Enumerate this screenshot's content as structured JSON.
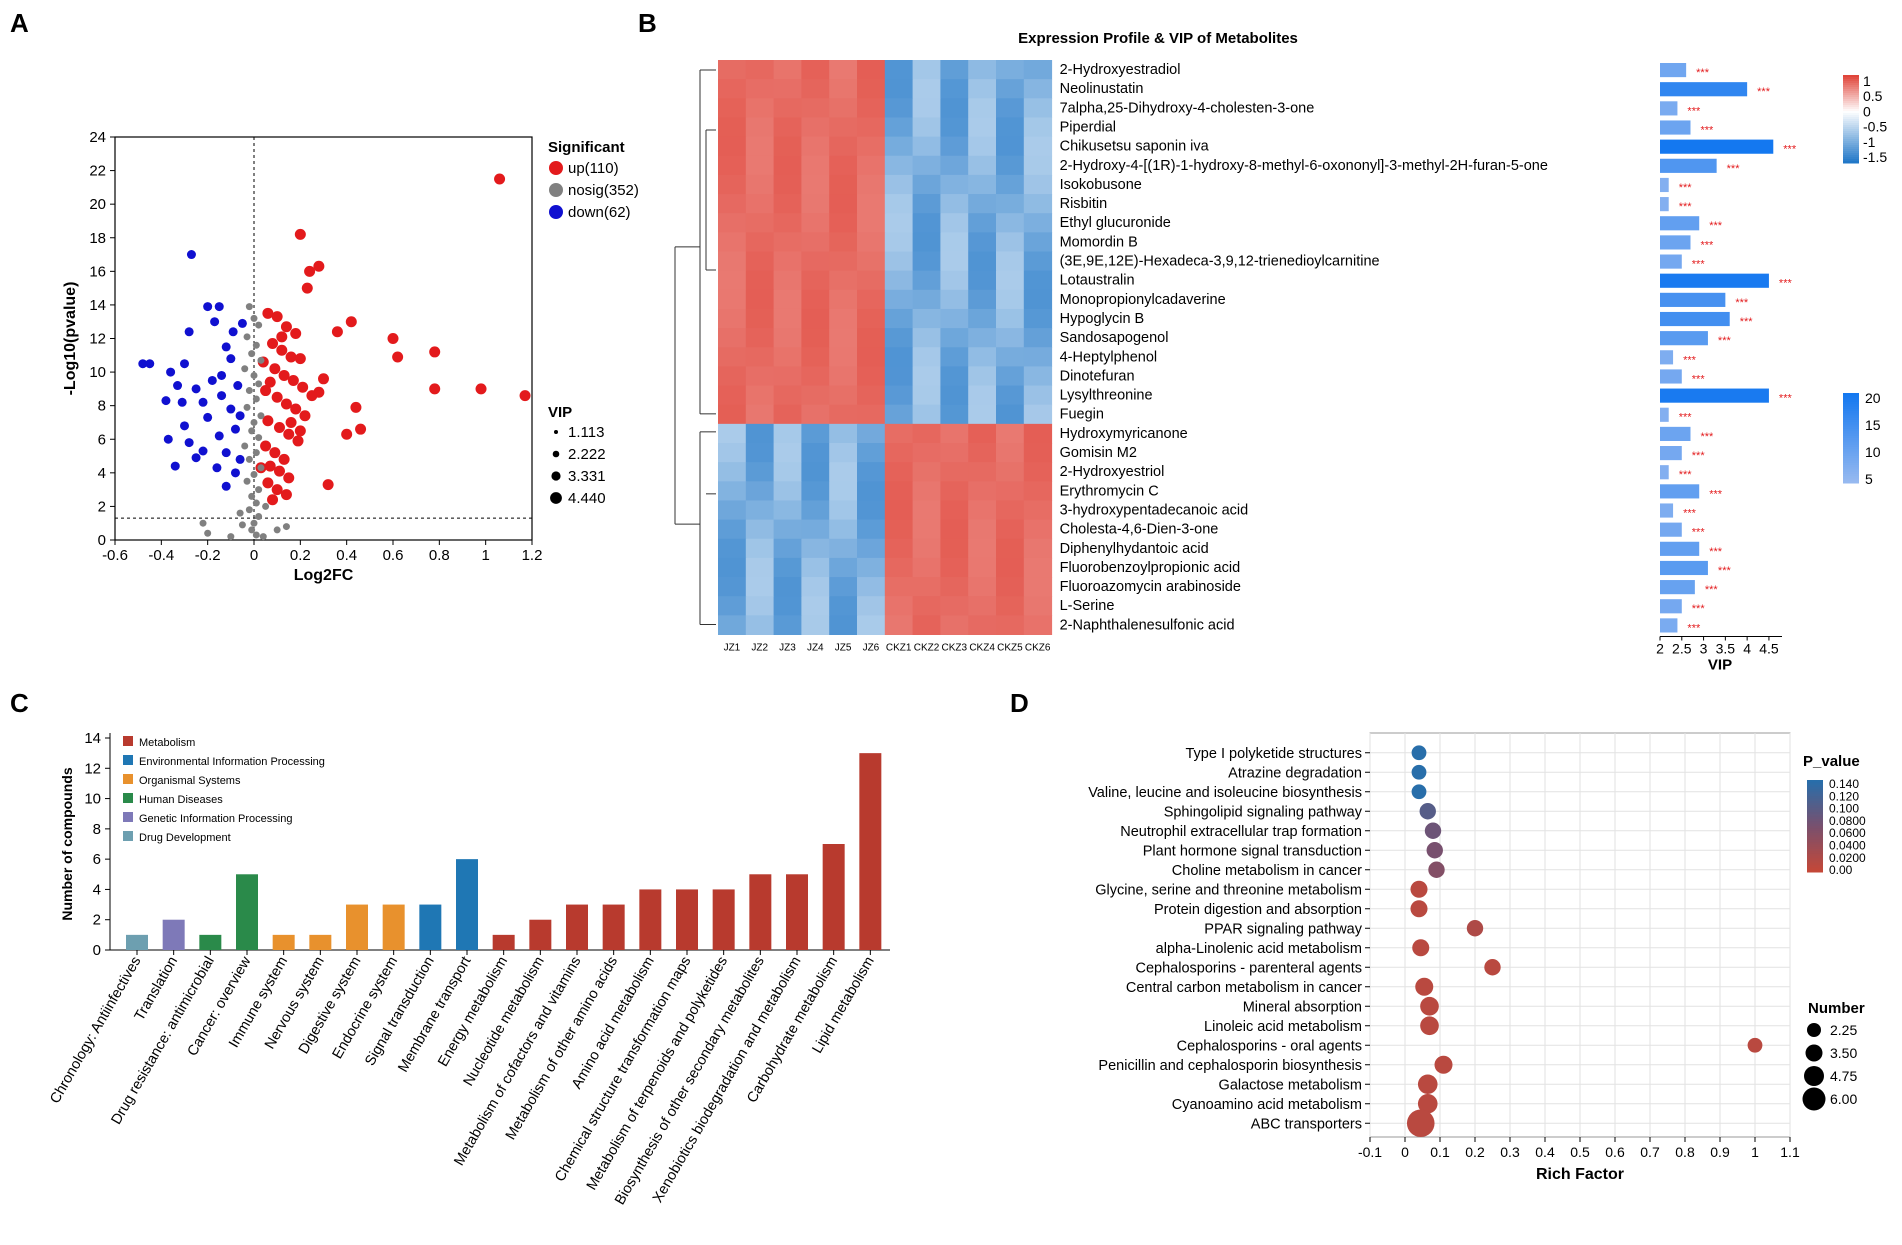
{
  "panel_letters": {
    "a": "A",
    "b": "B",
    "c": "C",
    "d": "D"
  },
  "colors": {
    "up": "#e31a1c",
    "nosig": "#808080",
    "down": "#1010d0",
    "heat_high": "#e0453a",
    "heat_low": "#3b86d3",
    "metabolism": "#b83a2e",
    "environmental": "#1f77b4",
    "organismal": "#e8912d",
    "human_disease": "#2a8a4a",
    "genetic": "#7e79b8",
    "drug_dev": "#6d9fb0"
  },
  "chart_data": [
    {
      "panel": "A",
      "type": "scatter",
      "xlabel": "Log2FC",
      "ylabel": "-Log10(pvalue)",
      "xlim": [
        -0.6,
        1.2
      ],
      "ylim": [
        0,
        24
      ],
      "xticks": [
        "-0.6",
        "-0.4",
        "-0.2",
        "0",
        "0.2",
        "0.4",
        "0.6",
        "0.8",
        "1",
        "1.2"
      ],
      "yticks": [
        "0",
        "2",
        "4",
        "6",
        "8",
        "10",
        "12",
        "14",
        "16",
        "18",
        "20",
        "22",
        "24"
      ],
      "legend": {
        "title": "Significant",
        "items": [
          {
            "label": "up(110)",
            "key": "up"
          },
          {
            "label": "nosig(352)",
            "key": "nosig"
          },
          {
            "label": "down(62)",
            "key": "down"
          }
        ],
        "vip_title": "VIP",
        "vip_items": [
          "1.113",
          "2.222",
          "3.331",
          "4.440"
        ]
      },
      "threshold_y": 1.3,
      "series": [
        {
          "name": "up",
          "points": [
            [
              1.06,
              21.5
            ],
            [
              0.2,
              18.2
            ],
            [
              0.28,
              16.3
            ],
            [
              0.24,
              16
            ],
            [
              0.23,
              15
            ],
            [
              0.42,
              13
            ],
            [
              0.36,
              12.4
            ],
            [
              0.6,
              12
            ],
            [
              0.78,
              11.2
            ],
            [
              0.62,
              10.9
            ],
            [
              0.98,
              9
            ],
            [
              1.17,
              8.6
            ],
            [
              0.78,
              9
            ],
            [
              0.44,
              7.9
            ],
            [
              0.46,
              6.6
            ],
            [
              0.4,
              6.3
            ],
            [
              0.32,
              3.3
            ],
            [
              0.28,
              8.8
            ],
            [
              0.25,
              8.6
            ],
            [
              0.3,
              9.6
            ],
            [
              0.06,
              13.5
            ],
            [
              0.1,
              13.3
            ],
            [
              0.14,
              12.7
            ],
            [
              0.18,
              12.3
            ],
            [
              0.08,
              11.7
            ],
            [
              0.12,
              11.3
            ],
            [
              0.16,
              10.9
            ],
            [
              0.2,
              10.8
            ],
            [
              0.04,
              10.6
            ],
            [
              0.09,
              10.2
            ],
            [
              0.13,
              9.8
            ],
            [
              0.17,
              9.5
            ],
            [
              0.21,
              9.1
            ],
            [
              0.05,
              8.9
            ],
            [
              0.1,
              8.5
            ],
            [
              0.14,
              8.1
            ],
            [
              0.18,
              7.8
            ],
            [
              0.22,
              7.4
            ],
            [
              0.06,
              7.1
            ],
            [
              0.11,
              6.7
            ],
            [
              0.15,
              6.3
            ],
            [
              0.19,
              5.9
            ],
            [
              0.05,
              5.6
            ],
            [
              0.09,
              5.2
            ],
            [
              0.13,
              4.8
            ],
            [
              0.07,
              4.4
            ],
            [
              0.11,
              4.1
            ],
            [
              0.15,
              3.7
            ],
            [
              0.06,
              3.4
            ],
            [
              0.1,
              3
            ],
            [
              0.14,
              2.7
            ],
            [
              0.08,
              2.4
            ],
            [
              0.12,
              12.1
            ],
            [
              0.07,
              9.4
            ],
            [
              0.16,
              7
            ],
            [
              0.2,
              6.5
            ],
            [
              0.03,
              4.3
            ]
          ]
        },
        {
          "name": "nosig",
          "points": [
            [
              -0.02,
              13.9
            ],
            [
              0,
              13.2
            ],
            [
              0.02,
              12.8
            ],
            [
              -0.03,
              12.1
            ],
            [
              0.01,
              11.6
            ],
            [
              -0.01,
              11.1
            ],
            [
              0.03,
              10.7
            ],
            [
              -0.04,
              10.2
            ],
            [
              0,
              9.8
            ],
            [
              0.02,
              9.3
            ],
            [
              -0.02,
              8.9
            ],
            [
              0.01,
              8.4
            ],
            [
              -0.03,
              7.9
            ],
            [
              0.03,
              7.4
            ],
            [
              0,
              7
            ],
            [
              -0.01,
              6.5
            ],
            [
              0.02,
              6.1
            ],
            [
              -0.04,
              5.6
            ],
            [
              0.01,
              5.2
            ],
            [
              -0.02,
              4.8
            ],
            [
              0.03,
              4.3
            ],
            [
              0,
              3.9
            ],
            [
              -0.03,
              3.5
            ],
            [
              0.02,
              3
            ],
            [
              -0.01,
              2.6
            ],
            [
              0.01,
              2.2
            ],
            [
              -0.02,
              1.8
            ],
            [
              0.02,
              1.4
            ],
            [
              0,
              1
            ],
            [
              -0.01,
              0.6
            ],
            [
              0.01,
              0.3
            ],
            [
              -0.2,
              0.4
            ],
            [
              -0.1,
              0.2
            ],
            [
              0.1,
              0.6
            ],
            [
              0.14,
              0.8
            ],
            [
              -0.22,
              1
            ],
            [
              0.05,
              2
            ],
            [
              -0.05,
              0.9
            ],
            [
              0.04,
              0.2
            ],
            [
              -0.06,
              1.6
            ]
          ]
        },
        {
          "name": "down",
          "points": [
            [
              -0.27,
              17
            ],
            [
              -0.2,
              13.9
            ],
            [
              -0.15,
              13.9
            ],
            [
              -0.17,
              13
            ],
            [
              -0.28,
              12.4
            ],
            [
              -0.48,
              10.5
            ],
            [
              -0.45,
              10.5
            ],
            [
              -0.36,
              10
            ],
            [
              -0.3,
              10.5
            ],
            [
              -0.33,
              9.2
            ],
            [
              -0.38,
              8.3
            ],
            [
              -0.31,
              8.2
            ],
            [
              -0.25,
              9
            ],
            [
              -0.12,
              11.5
            ],
            [
              -0.1,
              10.8
            ],
            [
              -0.14,
              9.8
            ],
            [
              -0.18,
              9.5
            ],
            [
              -0.22,
              8.2
            ],
            [
              -0.3,
              6.8
            ],
            [
              -0.37,
              6
            ],
            [
              -0.28,
              5.8
            ],
            [
              -0.22,
              5.3
            ],
            [
              -0.34,
              4.4
            ],
            [
              -0.12,
              5.2
            ],
            [
              -0.15,
              6.2
            ],
            [
              -0.08,
              6.6
            ],
            [
              -0.06,
              7.4
            ],
            [
              -0.1,
              7.8
            ],
            [
              -0.16,
              4.3
            ],
            [
              -0.06,
              4.8
            ],
            [
              -0.08,
              4
            ],
            [
              -0.12,
              3.2
            ],
            [
              -0.05,
              12.9
            ],
            [
              -0.09,
              12.4
            ],
            [
              -0.07,
              9.2
            ],
            [
              -0.2,
              7.3
            ],
            [
              -0.25,
              4.9
            ],
            [
              -0.14,
              8.6
            ]
          ]
        }
      ]
    },
    {
      "panel": "B",
      "type": "heatmap",
      "title": "Expression Profile & VIP of Metabolites",
      "columns": [
        "JZ1",
        "JZ2",
        "JZ3",
        "JZ4",
        "JZ5",
        "JZ6",
        "CKZ1",
        "CKZ2",
        "CKZ3",
        "CKZ4",
        "CKZ5",
        "CKZ6"
      ],
      "rows": [
        "2-Hydroxyestradiol",
        "Neolinustatin",
        "7alpha,25-Dihydroxy-4-cholesten-3-one",
        "Piperdial",
        "Chikusetsu saponin iva",
        "2-Hydroxy-4-[(1R)-1-hydroxy-8-methyl-6-oxononyl]-3-methyl-2H-furan-5-one",
        "Isokobusone",
        "Risbitin",
        "Ethyl glucuronide",
        "Momordin B",
        "(3E,9E,12E)-Hexadeca-3,9,12-trienedioylcarnitine",
        "Lotaustralin",
        "Monopropionylcadaverine",
        "Hypoglycin B",
        "Sandosapogenol",
        "4-Heptylphenol",
        "Dinotefuran",
        "Lysylthreonine",
        "Fuegin",
        "Hydroxymyricanone",
        "Gomisin M2",
        "2-Hydroxyestriol",
        "Erythromycin C",
        "3-hydroxypentadecanoic acid",
        "Cholesta-4,6-Dien-3-one",
        "Diphenylhydantoic acid",
        "Fluorobenzoylpropionic acid",
        "Fluoroazomycin arabinoside",
        "L-Serine",
        "2-Naphthalenesulfonic acid"
      ],
      "up_in_jz_rows": 19,
      "color_scale": {
        "ticks": [
          "1",
          "0.5",
          "0",
          "-0.5",
          "-1",
          "-1.5"
        ],
        "range": [
          -1.7,
          1.2
        ]
      },
      "vip": {
        "values": [
          2.6,
          4.0,
          2.4,
          2.7,
          4.6,
          3.3,
          2.2,
          2.2,
          2.9,
          2.7,
          2.5,
          4.5,
          3.5,
          3.6,
          3.1,
          2.3,
          2.5,
          4.5,
          2.2,
          2.7,
          2.5,
          2.2,
          2.9,
          2.3,
          2.5,
          2.9,
          3.1,
          2.8,
          2.5,
          2.4
        ],
        "stars": "***",
        "xlabel": "VIP",
        "xticks": [
          "2",
          "2.5",
          "3",
          "3.5",
          "4",
          "4.5"
        ],
        "xlim": [
          2,
          4.8
        ],
        "scale_ticks": [
          "20",
          "15",
          "10",
          "5"
        ]
      }
    },
    {
      "panel": "C",
      "type": "bar",
      "ylabel": "Number of compounds",
      "ylim": [
        0,
        14
      ],
      "yticks": [
        "0",
        "2",
        "4",
        "6",
        "8",
        "10",
        "12",
        "14"
      ],
      "legend": [
        {
          "label": "Metabolism",
          "key": "metabolism"
        },
        {
          "label": "Environmental Information Processing",
          "key": "environmental"
        },
        {
          "label": "Organismal Systems",
          "key": "organismal"
        },
        {
          "label": "Human Diseases",
          "key": "human_disease"
        },
        {
          "label": "Genetic Information Processing",
          "key": "genetic"
        },
        {
          "label": "Drug Development",
          "key": "drug_dev"
        }
      ],
      "categories": [
        "Chronology: Antiinfectives",
        "Translation",
        "Drug resistance: antimicrobial",
        "Cancer: overview",
        "Immune system",
        "Nervous system",
        "Digestive system",
        "Endocrine system",
        "Signal transduction",
        "Membrane transport",
        "Energy metabolism",
        "Nucleotide metabolism",
        "Metabolism of cofactors and vitamins",
        "Metabolism of other amino acids",
        "Amino acid metabolism",
        "Chemical structure transformation maps",
        "Metabolism of terpenoids and polyketides",
        "Biosynthesis of other secondary metabolites",
        "Xenobiotics biodegradation and metabolism",
        "Carbohydrate metabolism",
        "Lipid metabolism"
      ],
      "values": [
        1,
        2,
        1,
        5,
        1,
        1,
        3,
        3,
        3,
        6,
        1,
        2,
        3,
        3,
        4,
        4,
        4,
        5,
        5,
        7,
        13
      ],
      "groups": [
        "drug_dev",
        "genetic",
        "human_disease",
        "human_disease",
        "organismal",
        "organismal",
        "organismal",
        "organismal",
        "environmental",
        "environmental",
        "metabolism",
        "metabolism",
        "metabolism",
        "metabolism",
        "metabolism",
        "metabolism",
        "metabolism",
        "metabolism",
        "metabolism",
        "metabolism",
        "metabolism"
      ]
    },
    {
      "panel": "D",
      "type": "scatter",
      "xlabel": "Rich Factor",
      "xlim": [
        -0.1,
        1.1
      ],
      "xticks": [
        "-0.1",
        "0",
        "0.1",
        "0.2",
        "0.3",
        "0.4",
        "0.5",
        "0.6",
        "0.7",
        "0.8",
        "0.9",
        "1",
        "1.1"
      ],
      "pvalue_legend": {
        "title": "P_value",
        "ticks": [
          "0.140",
          "0.120",
          "0.100",
          "0.0800",
          "0.0600",
          "0.0400",
          "0.0200",
          "0.00"
        ]
      },
      "number_legend": {
        "title": "Number",
        "items": [
          "2.25",
          "3.50",
          "4.75",
          "6.00"
        ]
      },
      "pathways": [
        "Type I polyketide structures",
        "Atrazine degradation",
        "Valine, leucine and isoleucine biosynthesis",
        "Sphingolipid signaling pathway",
        "Neutrophil extracellular trap formation",
        "Plant hormone signal transduction",
        "Choline metabolism in cancer",
        "Glycine, serine and threonine metabolism",
        "Protein digestion and absorption",
        "PPAR signaling pathway",
        "alpha-Linolenic acid metabolism",
        "Cephalosporins - parenteral agents",
        "Central carbon metabolism in cancer",
        "Mineral absorption",
        "Linoleic acid metabolism",
        "Cephalosporins - oral agents",
        "Penicillin and cephalosporin biosynthesis",
        "Galactose metabolism",
        "Cyanoamino acid metabolism",
        "ABC transporters"
      ],
      "rich_factor": [
        0.04,
        0.04,
        0.04,
        0.065,
        0.08,
        0.085,
        0.09,
        0.04,
        0.04,
        0.2,
        0.045,
        0.25,
        0.055,
        0.07,
        0.07,
        1.0,
        0.11,
        0.065,
        0.065,
        0.045
      ],
      "p_value": [
        0.14,
        0.14,
        0.14,
        0.1,
        0.08,
        0.07,
        0.06,
        0.01,
        0.01,
        0.02,
        0.01,
        0.01,
        0.01,
        0.01,
        0.01,
        0.01,
        0.01,
        0.01,
        0.01,
        0.01
      ],
      "number": [
        1.5,
        1.5,
        1.5,
        2,
        2,
        2,
        2,
        2.2,
        2.2,
        2,
        2.2,
        2,
        2.5,
        2.7,
        2.7,
        1.5,
        2.5,
        3,
        3,
        5.5
      ]
    }
  ]
}
